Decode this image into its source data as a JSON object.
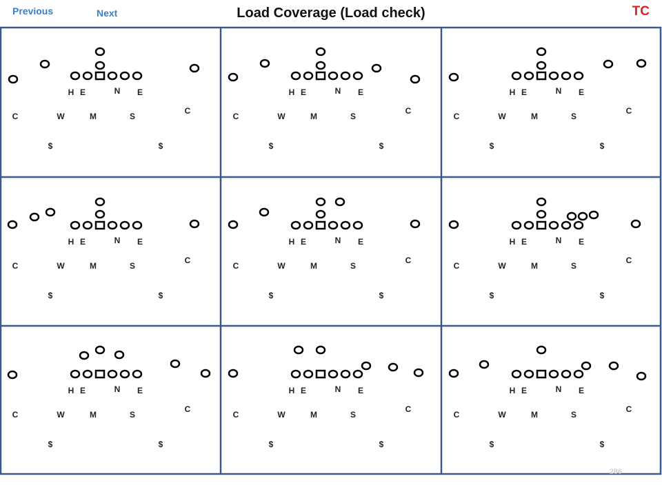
{
  "nav": {
    "previous": "Previous",
    "next": "Next"
  },
  "title": "Load Coverage (Load check)",
  "corner_tag": "TC",
  "slide_number": "286",
  "colors": {
    "grid_border": "#3a5a8c",
    "nav_link": "#3b7fc4",
    "tag": "#e02020"
  },
  "legend_letters": [
    "H",
    "E",
    "N",
    "E",
    "C",
    "W",
    "M",
    "S",
    "C",
    "$",
    "$"
  ],
  "panel_count": 9
}
